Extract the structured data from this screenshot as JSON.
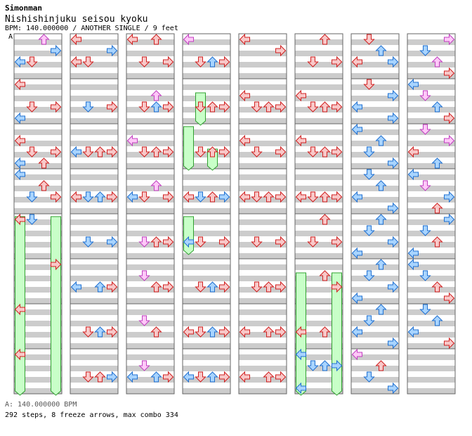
{
  "header": {
    "author": "Simonman",
    "title": "Nishishinjuku seisou kyoku",
    "info": "BPM: 140.000000 / ANOTHER SINGLE / 9 feet",
    "marker": "A"
  },
  "footer": {
    "bpm_line": "A: 140.000000 BPM",
    "stats_line": "292 steps, 8 freeze arrows, max combo 334"
  },
  "chart_data": {
    "type": "step-chart",
    "columns": 8,
    "measures_per_column": 8,
    "lanes": [
      "left",
      "down",
      "up",
      "right"
    ],
    "colors": {
      "quarter": "#d02020",
      "eighth": "#2070d0",
      "sixteenth": "#c040c0",
      "freeze": "#30a030"
    },
    "notes": [
      [
        [
          0,
          0,
          4,
          1
        ],
        [
          0,
          1,
          4,
          0
        ],
        [
          0,
          2,
          0,
          2
        ],
        [
          0,
          3,
          2,
          1
        ],
        [
          1,
          0,
          0,
          0
        ],
        [
          1,
          0,
          6,
          1
        ],
        [
          1,
          1,
          4,
          0
        ],
        [
          1,
          3,
          4,
          0
        ],
        [
          2,
          0,
          2,
          0
        ],
        [
          2,
          0,
          6,
          1
        ],
        [
          2,
          1,
          4,
          0
        ],
        [
          2,
          2,
          6,
          0
        ],
        [
          2,
          3,
          4,
          0
        ],
        [
          3,
          0,
          0,
          1
        ],
        [
          3,
          1,
          4,
          1
        ],
        [
          3,
          2,
          2,
          0
        ],
        [
          3,
          3,
          4,
          0
        ],
        [
          4,
          0,
          0,
          0
        ],
        [
          4,
          1,
          0,
          1
        ],
        [
          5,
          3,
          0,
          0
        ],
        [
          6,
          0,
          0,
          0
        ],
        [
          7,
          0,
          0,
          0
        ]
      ],
      [
        [
          0,
          0,
          0,
          0
        ],
        [
          0,
          0,
          4,
          0
        ],
        [
          0,
          1,
          4,
          0
        ],
        [
          0,
          3,
          2,
          1
        ],
        [
          1,
          1,
          4,
          1
        ],
        [
          1,
          3,
          4,
          0
        ],
        [
          2,
          0,
          4,
          1
        ],
        [
          2,
          1,
          4,
          0
        ],
        [
          2,
          2,
          4,
          0
        ],
        [
          2,
          3,
          4,
          0
        ],
        [
          3,
          0,
          4,
          0
        ],
        [
          3,
          1,
          4,
          1
        ],
        [
          3,
          2,
          4,
          1
        ],
        [
          3,
          3,
          4,
          0
        ],
        [
          4,
          1,
          4,
          1
        ],
        [
          4,
          3,
          4,
          1
        ],
        [
          5,
          0,
          4,
          1
        ],
        [
          5,
          2,
          4,
          1
        ],
        [
          5,
          3,
          4,
          0
        ],
        [
          6,
          1,
          4,
          0
        ],
        [
          6,
          2,
          4,
          1
        ],
        [
          6,
          3,
          4,
          0
        ],
        [
          7,
          1,
          4,
          0
        ],
        [
          7,
          2,
          4,
          0
        ],
        [
          7,
          3,
          4,
          1
        ]
      ],
      [
        [
          0,
          0,
          0,
          0
        ],
        [
          0,
          1,
          4,
          0
        ],
        [
          0,
          2,
          0,
          0
        ],
        [
          0,
          3,
          4,
          0
        ],
        [
          1,
          2,
          2,
          2
        ],
        [
          1,
          1,
          4,
          0
        ],
        [
          1,
          2,
          4,
          1
        ],
        [
          1,
          3,
          4,
          0
        ],
        [
          2,
          0,
          2,
          2
        ],
        [
          2,
          1,
          4,
          0
        ],
        [
          2,
          2,
          4,
          0
        ],
        [
          2,
          3,
          4,
          0
        ],
        [
          3,
          2,
          2,
          2
        ],
        [
          3,
          1,
          4,
          0
        ],
        [
          3,
          0,
          4,
          1
        ],
        [
          3,
          3,
          4,
          0
        ],
        [
          4,
          1,
          4,
          2
        ],
        [
          4,
          2,
          4,
          0
        ],
        [
          4,
          3,
          4,
          0
        ],
        [
          5,
          1,
          2,
          2
        ],
        [
          5,
          2,
          4,
          0
        ],
        [
          5,
          3,
          4,
          0
        ],
        [
          6,
          1,
          2,
          2
        ],
        [
          6,
          2,
          4,
          0
        ],
        [
          7,
          1,
          2,
          2
        ],
        [
          7,
          0,
          4,
          1
        ],
        [
          7,
          2,
          4,
          1
        ],
        [
          7,
          3,
          4,
          0
        ]
      ],
      [
        [
          0,
          0,
          0,
          2
        ],
        [
          0,
          1,
          4,
          0
        ],
        [
          0,
          2,
          4,
          1
        ],
        [
          0,
          3,
          4,
          0
        ],
        [
          1,
          1,
          4,
          0
        ],
        [
          1,
          2,
          4,
          0
        ],
        [
          1,
          3,
          4,
          0
        ],
        [
          2,
          1,
          4,
          0
        ],
        [
          2,
          2,
          4,
          0
        ],
        [
          2,
          3,
          4,
          0
        ],
        [
          3,
          0,
          4,
          0
        ],
        [
          3,
          1,
          4,
          1
        ],
        [
          3,
          2,
          4,
          0
        ],
        [
          3,
          3,
          4,
          1
        ],
        [
          4,
          0,
          4,
          1
        ],
        [
          4,
          1,
          4,
          0
        ],
        [
          4,
          3,
          4,
          0
        ],
        [
          5,
          1,
          4,
          0
        ],
        [
          5,
          2,
          4,
          1
        ],
        [
          5,
          3,
          4,
          0
        ],
        [
          6,
          0,
          4,
          0
        ],
        [
          6,
          1,
          4,
          0
        ],
        [
          6,
          2,
          4,
          1
        ],
        [
          6,
          3,
          4,
          0
        ],
        [
          7,
          0,
          4,
          1
        ],
        [
          7,
          1,
          4,
          0
        ],
        [
          7,
          2,
          4,
          1
        ],
        [
          7,
          3,
          4,
          0
        ]
      ],
      [
        [
          0,
          0,
          0,
          0
        ],
        [
          0,
          3,
          2,
          0
        ],
        [
          1,
          0,
          2,
          0
        ],
        [
          1,
          1,
          4,
          0
        ],
        [
          1,
          2,
          4,
          0
        ],
        [
          1,
          3,
          4,
          0
        ],
        [
          2,
          0,
          2,
          0
        ],
        [
          2,
          1,
          4,
          0
        ],
        [
          2,
          3,
          4,
          0
        ],
        [
          3,
          0,
          4,
          0
        ],
        [
          3,
          1,
          4,
          0
        ],
        [
          3,
          2,
          4,
          0
        ],
        [
          3,
          3,
          4,
          0
        ],
        [
          4,
          1,
          4,
          0
        ],
        [
          4,
          3,
          4,
          0
        ],
        [
          5,
          1,
          4,
          0
        ],
        [
          5,
          2,
          4,
          0
        ],
        [
          5,
          3,
          4,
          0
        ],
        [
          6,
          0,
          4,
          0
        ],
        [
          6,
          2,
          4,
          0
        ],
        [
          6,
          3,
          4,
          0
        ],
        [
          7,
          0,
          4,
          0
        ],
        [
          7,
          2,
          4,
          0
        ],
        [
          7,
          3,
          4,
          0
        ]
      ],
      [
        [
          0,
          2,
          0,
          0
        ],
        [
          0,
          1,
          4,
          0
        ],
        [
          0,
          3,
          4,
          0
        ],
        [
          1,
          0,
          2,
          0
        ],
        [
          1,
          1,
          4,
          0
        ],
        [
          1,
          2,
          4,
          0
        ],
        [
          1,
          3,
          4,
          0
        ],
        [
          2,
          0,
          2,
          0
        ],
        [
          2,
          1,
          4,
          0
        ],
        [
          2,
          2,
          4,
          0
        ],
        [
          2,
          3,
          4,
          0
        ],
        [
          3,
          0,
          4,
          0
        ],
        [
          3,
          1,
          4,
          0
        ],
        [
          3,
          2,
          4,
          0
        ],
        [
          3,
          3,
          4,
          0
        ],
        [
          4,
          2,
          0,
          0
        ],
        [
          4,
          1,
          4,
          0
        ],
        [
          4,
          3,
          4,
          0
        ],
        [
          5,
          2,
          2,
          0
        ],
        [
          5,
          3,
          4,
          0
        ],
        [
          6,
          0,
          4,
          0
        ],
        [
          6,
          2,
          4,
          0
        ],
        [
          7,
          0,
          0,
          1
        ],
        [
          7,
          1,
          2,
          1
        ],
        [
          7,
          2,
          2,
          1
        ],
        [
          7,
          3,
          2,
          1
        ],
        [
          7,
          0,
          6,
          1
        ]
      ],
      [
        [
          0,
          1,
          0,
          0
        ],
        [
          0,
          2,
          2,
          1
        ],
        [
          0,
          0,
          4,
          0
        ],
        [
          0,
          3,
          4,
          1
        ],
        [
          1,
          1,
          0,
          0
        ],
        [
          1,
          3,
          2,
          1
        ],
        [
          1,
          0,
          4,
          1
        ],
        [
          1,
          3,
          6,
          1
        ],
        [
          2,
          0,
          0,
          1
        ],
        [
          2,
          2,
          2,
          1
        ],
        [
          2,
          1,
          4,
          1
        ],
        [
          2,
          3,
          6,
          1
        ],
        [
          3,
          1,
          0,
          1
        ],
        [
          3,
          2,
          2,
          1
        ],
        [
          3,
          0,
          4,
          1
        ],
        [
          3,
          3,
          6,
          1
        ],
        [
          4,
          2,
          0,
          1
        ],
        [
          4,
          1,
          2,
          1
        ],
        [
          4,
          3,
          4,
          1
        ],
        [
          4,
          0,
          6,
          1
        ],
        [
          5,
          2,
          0,
          1
        ],
        [
          5,
          1,
          2,
          1
        ],
        [
          5,
          3,
          4,
          1
        ],
        [
          5,
          0,
          6,
          1
        ],
        [
          6,
          2,
          0,
          1
        ],
        [
          6,
          1,
          2,
          1
        ],
        [
          6,
          0,
          4,
          1
        ],
        [
          6,
          3,
          6,
          1
        ],
        [
          7,
          0,
          0,
          2
        ],
        [
          7,
          2,
          2,
          0
        ],
        [
          7,
          1,
          4,
          1
        ],
        [
          7,
          3,
          6,
          1
        ]
      ],
      [
        [
          0,
          3,
          0,
          2
        ],
        [
          0,
          1,
          2,
          1
        ],
        [
          0,
          2,
          4,
          2
        ],
        [
          0,
          3,
          6,
          0
        ],
        [
          1,
          0,
          0,
          1
        ],
        [
          1,
          1,
          2,
          2
        ],
        [
          1,
          2,
          4,
          1
        ],
        [
          1,
          3,
          6,
          0
        ],
        [
          2,
          1,
          0,
          2
        ],
        [
          2,
          3,
          2,
          2
        ],
        [
          2,
          0,
          4,
          0
        ],
        [
          2,
          2,
          6,
          1
        ],
        [
          3,
          0,
          0,
          1
        ],
        [
          3,
          1,
          2,
          2
        ],
        [
          3,
          3,
          4,
          1
        ],
        [
          3,
          2,
          6,
          0
        ],
        [
          4,
          3,
          0,
          1
        ],
        [
          4,
          1,
          2,
          1
        ],
        [
          4,
          2,
          4,
          0
        ],
        [
          4,
          0,
          6,
          1
        ],
        [
          5,
          0,
          0,
          1
        ],
        [
          5,
          1,
          2,
          1
        ],
        [
          5,
          2,
          4,
          0
        ],
        [
          5,
          3,
          6,
          0
        ],
        [
          6,
          1,
          0,
          1
        ],
        [
          6,
          2,
          2,
          1
        ],
        [
          6,
          0,
          4,
          1
        ],
        [
          6,
          3,
          6,
          0
        ]
      ]
    ],
    "freezes": [
      [
        0,
        0,
        4,
        0,
        7,
        7
      ],
      [
        0,
        3,
        4,
        0,
        7,
        7
      ],
      [
        3,
        0,
        2,
        0,
        2,
        7
      ],
      [
        3,
        2,
        2,
        4,
        2,
        7
      ],
      [
        3,
        0,
        4,
        0,
        4,
        6
      ],
      [
        3,
        1,
        1,
        2,
        1,
        7
      ],
      [
        5,
        0,
        5,
        2,
        7,
        7
      ],
      [
        5,
        3,
        5,
        2,
        7,
        7
      ]
    ]
  }
}
